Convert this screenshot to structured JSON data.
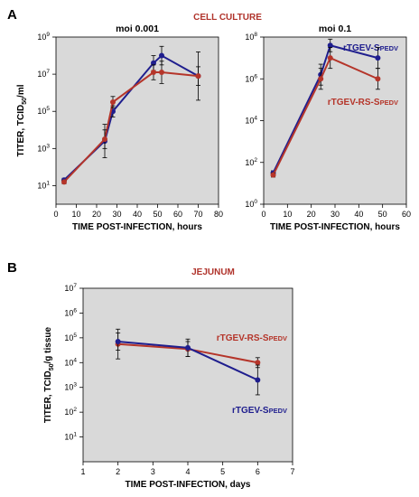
{
  "panels": {
    "a": "A",
    "b": "B"
  },
  "header_a": "CELL CULTURE",
  "header_b": "JEJUNUM",
  "colors": {
    "blue": "#1f1e8e",
    "red": "#b5352a",
    "shade": "#d9d9d9",
    "header_text": "#b0332b"
  },
  "chart_data": [
    {
      "type": "line",
      "title": "moi 0.001",
      "xlabel": "TIME POST-INFECTION, hours",
      "ylabel": "TITER, TCID50/ml",
      "ylabel_parts": {
        "main": "TITER, TCID",
        "sub": "50",
        "tail": "/ml"
      },
      "xlim": [
        0,
        80
      ],
      "xticks": [
        "0",
        "10",
        "20",
        "30",
        "40",
        "50",
        "60",
        "70",
        "80"
      ],
      "ylim_log10": [
        0,
        9
      ],
      "yscale": "log",
      "yticks": [
        {
          "base": "10",
          "exp": "1"
        },
        {
          "base": "10",
          "exp": "3"
        },
        {
          "base": "10",
          "exp": "5"
        },
        {
          "base": "10",
          "exp": "7"
        },
        {
          "base": "10",
          "exp": "9"
        }
      ],
      "series": [
        {
          "color": "blue",
          "x": [
            4,
            24,
            28,
            48,
            52,
            70
          ],
          "y_log10": [
            1.3,
            3.4,
            5.0,
            7.6,
            8.0,
            6.9
          ],
          "err_log10": [
            0.1,
            0.9,
            0.3,
            0.4,
            0.5,
            0.5
          ]
        },
        {
          "color": "red",
          "x": [
            4,
            24,
            28,
            48,
            52,
            70
          ],
          "y_log10": [
            1.2,
            3.5,
            5.5,
            7.1,
            7.1,
            6.9
          ],
          "err_log10": [
            0.1,
            0.5,
            0.3,
            0.4,
            0.6,
            1.3
          ]
        }
      ]
    },
    {
      "type": "line",
      "title": "moi 0.1",
      "xlabel": "TIME POST-INFECTION, hours",
      "xlim": [
        0,
        60
      ],
      "xticks": [
        "0",
        "10",
        "20",
        "30",
        "40",
        "50",
        "60"
      ],
      "ylim_log10": [
        0,
        8
      ],
      "yscale": "log",
      "yticks": [
        {
          "base": "10",
          "exp": "0"
        },
        {
          "base": "10",
          "exp": "2"
        },
        {
          "base": "10",
          "exp": "4"
        },
        {
          "base": "10",
          "exp": "6"
        },
        {
          "base": "10",
          "exp": "8"
        }
      ],
      "series": [
        {
          "name": "rTGEV-SPEDV",
          "label_parts": {
            "main": "rTGEV-S",
            "small": "PEDV"
          },
          "color": "blue",
          "x": [
            4,
            24,
            28,
            48
          ],
          "y_log10": [
            1.5,
            6.2,
            7.6,
            7.0
          ],
          "err_log10": [
            0.1,
            0.5,
            0.3,
            0.5
          ]
        },
        {
          "name": "rTGEV-RS-SPEDV",
          "label_parts": {
            "main": "rTGEV-RS-S",
            "small": "PEDV"
          },
          "color": "red",
          "x": [
            4,
            24,
            28,
            48
          ],
          "y_log10": [
            1.4,
            6.0,
            7.0,
            6.0
          ],
          "err_log10": [
            0.1,
            0.5,
            0.5,
            0.5
          ]
        }
      ]
    },
    {
      "type": "line",
      "xlabel": "TIME POST-INFECTION, days",
      "ylabel": "TITER, TCID50/g tissue",
      "ylabel_parts": {
        "main": "TITER, TCID",
        "sub": "50",
        "tail": "/g tissue"
      },
      "xlim": [
        1,
        7
      ],
      "xticks": [
        "1",
        "2",
        "3",
        "4",
        "5",
        "6",
        "7"
      ],
      "ylim_log10": [
        0,
        7
      ],
      "yscale": "log",
      "yticks": [
        {
          "base": "10",
          "exp": "1"
        },
        {
          "base": "10",
          "exp": "2"
        },
        {
          "base": "10",
          "exp": "3"
        },
        {
          "base": "10",
          "exp": "4"
        },
        {
          "base": "10",
          "exp": "5"
        },
        {
          "base": "10",
          "exp": "6"
        },
        {
          "base": "10",
          "exp": "7"
        }
      ],
      "series": [
        {
          "name": "rTGEV-RS-SPEDV",
          "label_parts": {
            "main": "rTGEV-RS-S",
            "small": "PEDV"
          },
          "color": "red",
          "x": [
            2,
            4,
            6
          ],
          "y_log10": [
            4.75,
            4.55,
            4.0
          ],
          "err_log10": [
            0.6,
            0.3,
            0.2
          ]
        },
        {
          "name": "rTGEV-SPEDV",
          "label_parts": {
            "main": "rTGEV-S",
            "small": "PEDV"
          },
          "color": "blue",
          "x": [
            2,
            4,
            6
          ],
          "y_log10": [
            4.85,
            4.6,
            3.3
          ],
          "err_log10": [
            0.35,
            0.35,
            0.6
          ]
        }
      ]
    }
  ]
}
